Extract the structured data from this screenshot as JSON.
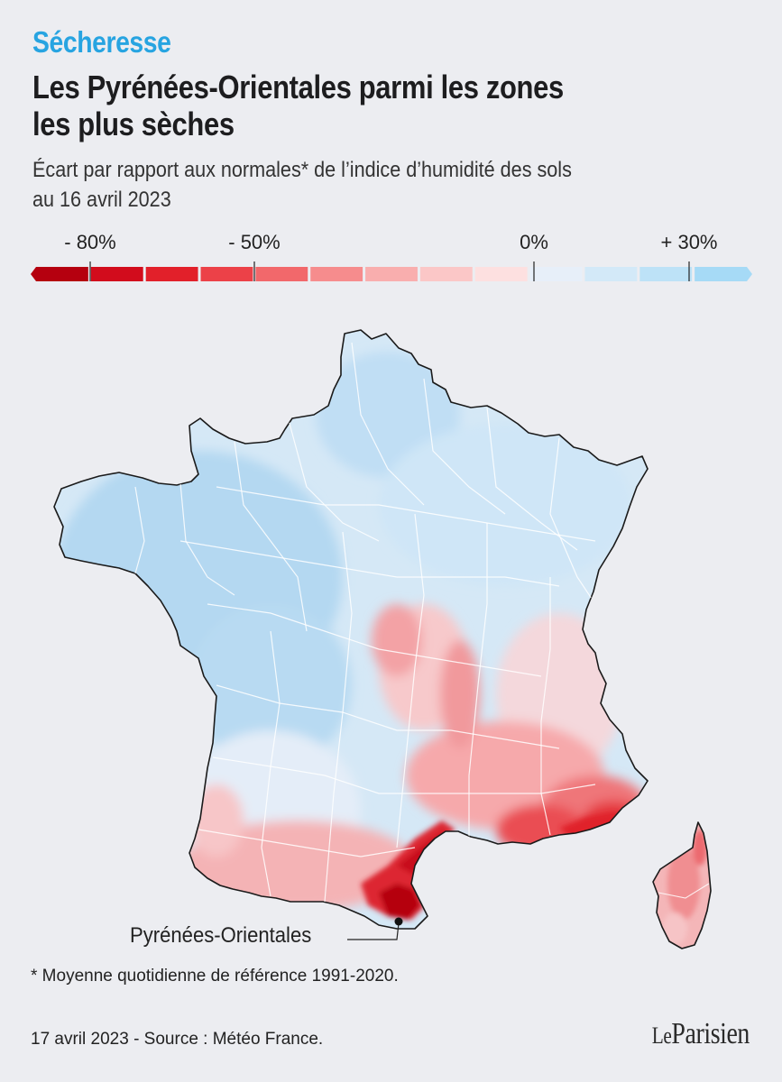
{
  "header": {
    "kicker": "Sécheresse",
    "title_line1": "Les Pyrénées-Orientales parmi les zones",
    "title_line2": "les plus sèches",
    "subtitle_line1": "Écart par rapport aux normales* de l’indice d’humidité des sols",
    "subtitle_line2": "au 16 avril 2023"
  },
  "legend": {
    "labels": [
      "- 80%",
      "- 50%",
      "0%",
      "+ 30%"
    ],
    "values": [
      -80,
      -50,
      0,
      30
    ],
    "range": [
      -100,
      40
    ],
    "step": 10,
    "colors": [
      "#b5000f",
      "#d20c1c",
      "#e2202a",
      "#ec4148",
      "#f2686b",
      "#f68c8d",
      "#f9aeae",
      "#fbc7c7",
      "#fde0e0",
      "#e7eff9",
      "#d3e9f8",
      "#bde2f7",
      "#a6daf6"
    ]
  },
  "map": {
    "region": "France métropolitaine",
    "callout": "Pyrénées-Orientales"
  },
  "colors": {
    "kicker": "#27a4e1",
    "title": "#1d1d1f",
    "background": "#ecedf1",
    "moist": "#c9e4f6",
    "dry": "#e2202a",
    "very_dry": "#b5000f"
  },
  "footer": {
    "footnote": "* Moyenne quotidienne de référence 1991-2020.",
    "source": "17 avril 2023 - Source : Météo France.",
    "logo_le": "Le",
    "logo_name": "Parisien"
  }
}
